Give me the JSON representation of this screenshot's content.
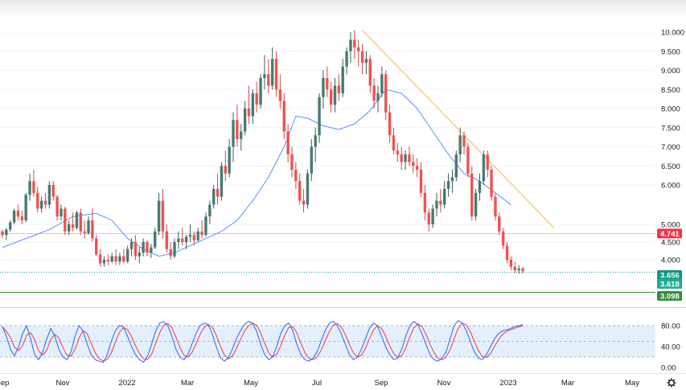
{
  "chart_data": {
    "type": "candlestick",
    "price_axis": {
      "ticks": [
        "10.000",
        "9.500",
        "9.000",
        "8.500",
        "8.000",
        "7.500",
        "7.000",
        "6.500",
        "6.000",
        "5.000",
        "4.500",
        "4.000"
      ],
      "tick_values": [
        10,
        9.5,
        9,
        8.5,
        8,
        7.5,
        7,
        6.5,
        6,
        5,
        4.5,
        4
      ],
      "ylim": [
        3.0,
        10.2
      ]
    },
    "time_axis": {
      "labels": [
        "Sep",
        "Nov",
        "2022",
        "Mar",
        "May",
        "Jul",
        "Sep",
        "Nov",
        "2023",
        "Mar",
        "May"
      ]
    },
    "price_lines": [
      {
        "value": 4.741,
        "label": "4.741",
        "color": "#f23645",
        "style": "solid-faint"
      },
      {
        "value": 3.656,
        "label": "3.656",
        "color": "#089981",
        "style": "dotted"
      },
      {
        "value": 3.618,
        "label": "3.618",
        "color": "#22ab94",
        "style": "none"
      },
      {
        "value": 3.098,
        "label": "3.098",
        "color": "#388e3c",
        "style": "solid"
      }
    ],
    "trendline": {
      "color": "#f5c16c",
      "from": {
        "bar_index": 92,
        "price": 10.05
      },
      "to": {
        "bar_index": 141,
        "price": 4.9
      }
    },
    "moving_average": {
      "color": "#5b8ff9",
      "points": [
        [
          0,
          4.35
        ],
        [
          6,
          4.6
        ],
        [
          12,
          4.85
        ],
        [
          18,
          5.2
        ],
        [
          24,
          5.28
        ],
        [
          28,
          5.1
        ],
        [
          32,
          4.6
        ],
        [
          36,
          4.3
        ],
        [
          40,
          4.1
        ],
        [
          44,
          4.2
        ],
        [
          48,
          4.4
        ],
        [
          52,
          4.6
        ],
        [
          56,
          4.8
        ],
        [
          60,
          5.1
        ],
        [
          64,
          5.6
        ],
        [
          68,
          6.2
        ],
        [
          72,
          7.0
        ],
        [
          75,
          7.8
        ],
        [
          78,
          7.75
        ],
        [
          82,
          7.55
        ],
        [
          86,
          7.45
        ],
        [
          90,
          7.6
        ],
        [
          94,
          7.95
        ],
        [
          98,
          8.5
        ],
        [
          102,
          8.4
        ],
        [
          106,
          8.0
        ],
        [
          110,
          7.4
        ],
        [
          114,
          6.8
        ],
        [
          118,
          6.3
        ],
        [
          122,
          6.1
        ],
        [
          126,
          5.8
        ],
        [
          130,
          5.5
        ]
      ]
    },
    "candles": [
      [
        4.8,
        4.85,
        4.6,
        4.7
      ],
      [
        4.7,
        4.9,
        4.55,
        4.85
      ],
      [
        4.85,
        5.1,
        4.8,
        5.05
      ],
      [
        5.05,
        5.4,
        5.0,
        5.35
      ],
      [
        5.35,
        5.5,
        5.1,
        5.2
      ],
      [
        5.2,
        5.35,
        5.0,
        5.1
      ],
      [
        5.1,
        5.8,
        5.05,
        5.75
      ],
      [
        5.75,
        6.3,
        5.6,
        6.1
      ],
      [
        6.1,
        6.4,
        5.7,
        5.8
      ],
      [
        5.8,
        5.95,
        5.3,
        5.4
      ],
      [
        5.4,
        5.7,
        5.3,
        5.6
      ],
      [
        5.6,
        5.8,
        5.4,
        5.5
      ],
      [
        5.5,
        6.1,
        5.4,
        6.0
      ],
      [
        6.0,
        6.1,
        5.6,
        5.7
      ],
      [
        5.7,
        5.75,
        5.1,
        5.2
      ],
      [
        5.2,
        5.5,
        5.1,
        5.4
      ],
      [
        5.4,
        5.45,
        4.7,
        4.8
      ],
      [
        4.8,
        5.1,
        4.7,
        5.0
      ],
      [
        5.0,
        5.3,
        4.8,
        4.9
      ],
      [
        4.9,
        5.35,
        4.85,
        5.3
      ],
      [
        5.3,
        5.4,
        4.7,
        4.8
      ],
      [
        4.8,
        5.1,
        4.6,
        4.75
      ],
      [
        4.75,
        5.2,
        4.7,
        5.1
      ],
      [
        5.1,
        5.4,
        4.5,
        4.6
      ],
      [
        4.6,
        4.7,
        4.1,
        4.15
      ],
      [
        4.15,
        4.3,
        3.8,
        3.9
      ],
      [
        3.9,
        4.1,
        3.8,
        4.0
      ],
      [
        4.0,
        4.15,
        3.85,
        3.95
      ],
      [
        3.95,
        4.2,
        3.9,
        4.1
      ],
      [
        4.1,
        4.3,
        3.85,
        3.95
      ],
      [
        3.95,
        4.2,
        3.85,
        4.1
      ],
      [
        4.1,
        4.3,
        3.9,
        3.95
      ],
      [
        3.95,
        4.4,
        3.9,
        4.3
      ],
      [
        4.3,
        4.6,
        4.1,
        4.5
      ],
      [
        4.5,
        4.7,
        4.0,
        4.1
      ],
      [
        4.1,
        4.35,
        3.9,
        4.2
      ],
      [
        4.2,
        4.6,
        4.1,
        4.5
      ],
      [
        4.5,
        4.55,
        4.1,
        4.2
      ],
      [
        4.2,
        4.45,
        4.05,
        4.35
      ],
      [
        4.35,
        4.9,
        4.3,
        4.8
      ],
      [
        4.8,
        5.8,
        4.7,
        5.6
      ],
      [
        5.6,
        5.9,
        4.6,
        4.8
      ],
      [
        4.8,
        5.0,
        4.2,
        4.3
      ],
      [
        4.3,
        4.5,
        4.0,
        4.1
      ],
      [
        4.1,
        4.6,
        4.05,
        4.5
      ],
      [
        4.5,
        4.8,
        4.3,
        4.6
      ],
      [
        4.6,
        4.9,
        4.4,
        4.5
      ],
      [
        4.5,
        4.7,
        4.3,
        4.65
      ],
      [
        4.65,
        5.0,
        4.5,
        4.7
      ],
      [
        4.7,
        4.8,
        4.4,
        4.55
      ],
      [
        4.55,
        4.9,
        4.5,
        4.8
      ],
      [
        4.8,
        5.1,
        4.6,
        4.7
      ],
      [
        4.7,
        5.3,
        4.65,
        5.2
      ],
      [
        5.2,
        5.6,
        5.0,
        5.5
      ],
      [
        5.5,
        6.0,
        5.4,
        5.9
      ],
      [
        5.9,
        6.3,
        5.5,
        5.7
      ],
      [
        5.7,
        6.6,
        5.6,
        6.5
      ],
      [
        6.5,
        6.9,
        6.1,
        6.3
      ],
      [
        6.3,
        7.2,
        6.2,
        7.0
      ],
      [
        7.0,
        7.9,
        6.6,
        7.7
      ],
      [
        7.7,
        8.1,
        7.0,
        7.2
      ],
      [
        7.2,
        7.6,
        6.9,
        7.4
      ],
      [
        7.4,
        8.2,
        7.3,
        8.0
      ],
      [
        8.0,
        8.6,
        7.6,
        7.8
      ],
      [
        7.8,
        8.5,
        7.6,
        8.4
      ],
      [
        8.4,
        8.7,
        7.9,
        8.1
      ],
      [
        8.1,
        8.9,
        8.0,
        8.8
      ],
      [
        8.8,
        9.4,
        8.5,
        8.9
      ],
      [
        8.9,
        9.3,
        8.4,
        8.6
      ],
      [
        8.6,
        9.6,
        8.5,
        9.3
      ],
      [
        9.3,
        9.5,
        8.3,
        8.5
      ],
      [
        8.5,
        8.9,
        8.0,
        8.2
      ],
      [
        8.2,
        8.4,
        7.2,
        7.4
      ],
      [
        7.4,
        7.6,
        6.6,
        6.8
      ],
      [
        6.8,
        7.0,
        6.2,
        6.4
      ],
      [
        6.4,
        6.6,
        5.9,
        6.1
      ],
      [
        6.1,
        6.3,
        5.5,
        5.6
      ],
      [
        5.6,
        5.9,
        5.3,
        5.5
      ],
      [
        5.5,
        6.4,
        5.4,
        6.3
      ],
      [
        6.3,
        7.2,
        6.1,
        7.0
      ],
      [
        7.0,
        7.5,
        6.6,
        7.3
      ],
      [
        7.3,
        8.4,
        7.1,
        8.3
      ],
      [
        8.3,
        9.0,
        8.0,
        8.8
      ],
      [
        8.8,
        9.1,
        8.3,
        8.5
      ],
      [
        8.5,
        8.7,
        7.9,
        8.1
      ],
      [
        8.1,
        8.8,
        7.9,
        8.6
      ],
      [
        8.6,
        8.9,
        8.2,
        8.4
      ],
      [
        8.4,
        9.3,
        8.3,
        9.1
      ],
      [
        9.1,
        9.6,
        8.9,
        9.5
      ],
      [
        9.5,
        10.0,
        9.2,
        9.8
      ],
      [
        9.8,
        10.05,
        9.3,
        9.6
      ],
      [
        9.6,
        9.8,
        9.1,
        9.5
      ],
      [
        9.5,
        9.7,
        8.9,
        9.2
      ],
      [
        9.2,
        9.5,
        8.9,
        9.3
      ],
      [
        9.3,
        9.4,
        8.4,
        8.6
      ],
      [
        8.6,
        8.8,
        8.0,
        8.2
      ],
      [
        8.2,
        8.6,
        7.9,
        8.4
      ],
      [
        8.4,
        9.1,
        8.3,
        8.9
      ],
      [
        8.9,
        9.0,
        7.7,
        7.9
      ],
      [
        7.9,
        8.1,
        7.1,
        7.3
      ],
      [
        7.3,
        7.5,
        6.8,
        6.9
      ],
      [
        6.9,
        7.1,
        6.6,
        6.8
      ],
      [
        6.8,
        7.0,
        6.4,
        6.6
      ],
      [
        6.6,
        6.9,
        6.4,
        6.8
      ],
      [
        6.8,
        7.0,
        6.5,
        6.6
      ],
      [
        6.6,
        6.8,
        6.3,
        6.5
      ],
      [
        6.5,
        6.7,
        6.2,
        6.4
      ],
      [
        6.4,
        6.6,
        5.7,
        5.8
      ],
      [
        5.8,
        6.0,
        5.1,
        5.3
      ],
      [
        5.3,
        5.4,
        4.8,
        5.0
      ],
      [
        5.0,
        5.5,
        4.9,
        5.4
      ],
      [
        5.4,
        5.8,
        5.2,
        5.6
      ],
      [
        5.6,
        5.9,
        5.3,
        5.5
      ],
      [
        5.5,
        6.1,
        5.4,
        5.9
      ],
      [
        5.9,
        6.3,
        5.7,
        6.1
      ],
      [
        6.1,
        6.4,
        5.8,
        6.2
      ],
      [
        6.2,
        6.9,
        6.1,
        6.8
      ],
      [
        6.8,
        7.5,
        6.6,
        7.3
      ],
      [
        7.3,
        7.4,
        6.8,
        7.0
      ],
      [
        7.0,
        7.1,
        6.2,
        6.3
      ],
      [
        6.3,
        6.5,
        5.1,
        5.2
      ],
      [
        5.2,
        5.9,
        5.1,
        5.8
      ],
      [
        5.8,
        6.3,
        5.6,
        6.1
      ],
      [
        6.1,
        6.9,
        6.0,
        6.8
      ],
      [
        6.8,
        6.9,
        6.2,
        6.4
      ],
      [
        6.4,
        6.5,
        5.6,
        5.7
      ],
      [
        5.7,
        5.8,
        5.1,
        5.2
      ],
      [
        5.2,
        5.3,
        4.7,
        4.8
      ],
      [
        4.8,
        4.9,
        4.3,
        4.4
      ],
      [
        4.4,
        4.5,
        3.9,
        4.0
      ],
      [
        4.0,
        4.1,
        3.7,
        3.8
      ],
      [
        3.8,
        3.95,
        3.62,
        3.7
      ],
      [
        3.7,
        3.85,
        3.6,
        3.75
      ],
      [
        3.75,
        3.8,
        3.62,
        3.68
      ]
    ],
    "stochastic": {
      "axis_ticks": [
        "80.00",
        "40.00",
        "0.00"
      ],
      "tick_values": [
        80,
        40,
        0
      ],
      "band": [
        20,
        80
      ],
      "band_color": "#e3f0fc",
      "k_color": "#2962ff",
      "d_color": "#f23645",
      "k": [
        78,
        60,
        35,
        22,
        40,
        65,
        80,
        55,
        25,
        15,
        30,
        55,
        75,
        60,
        35,
        20,
        15,
        30,
        60,
        80,
        70,
        45,
        25,
        15,
        12,
        10,
        25,
        50,
        70,
        80,
        78,
        60,
        40,
        25,
        15,
        10,
        22,
        45,
        70,
        85,
        88,
        80,
        60,
        35,
        20,
        15,
        25,
        45,
        65,
        80,
        85,
        82,
        65,
        40,
        20,
        12,
        18,
        35,
        55,
        70,
        82,
        88,
        85,
        70,
        45,
        25,
        15,
        20,
        40,
        65,
        80,
        85,
        70,
        45,
        25,
        15,
        12,
        18,
        30,
        50,
        70,
        85,
        88,
        80,
        65,
        45,
        25,
        15,
        20,
        35,
        55,
        75,
        85,
        80,
        60,
        40,
        25,
        15,
        18,
        35,
        60,
        80,
        88,
        82,
        65,
        45,
        25,
        15,
        12,
        18,
        30,
        55,
        80,
        90,
        85,
        70,
        50,
        30,
        18,
        15,
        25,
        40,
        55,
        65,
        70,
        72,
        75,
        78,
        80,
        82
      ]
    }
  }
}
